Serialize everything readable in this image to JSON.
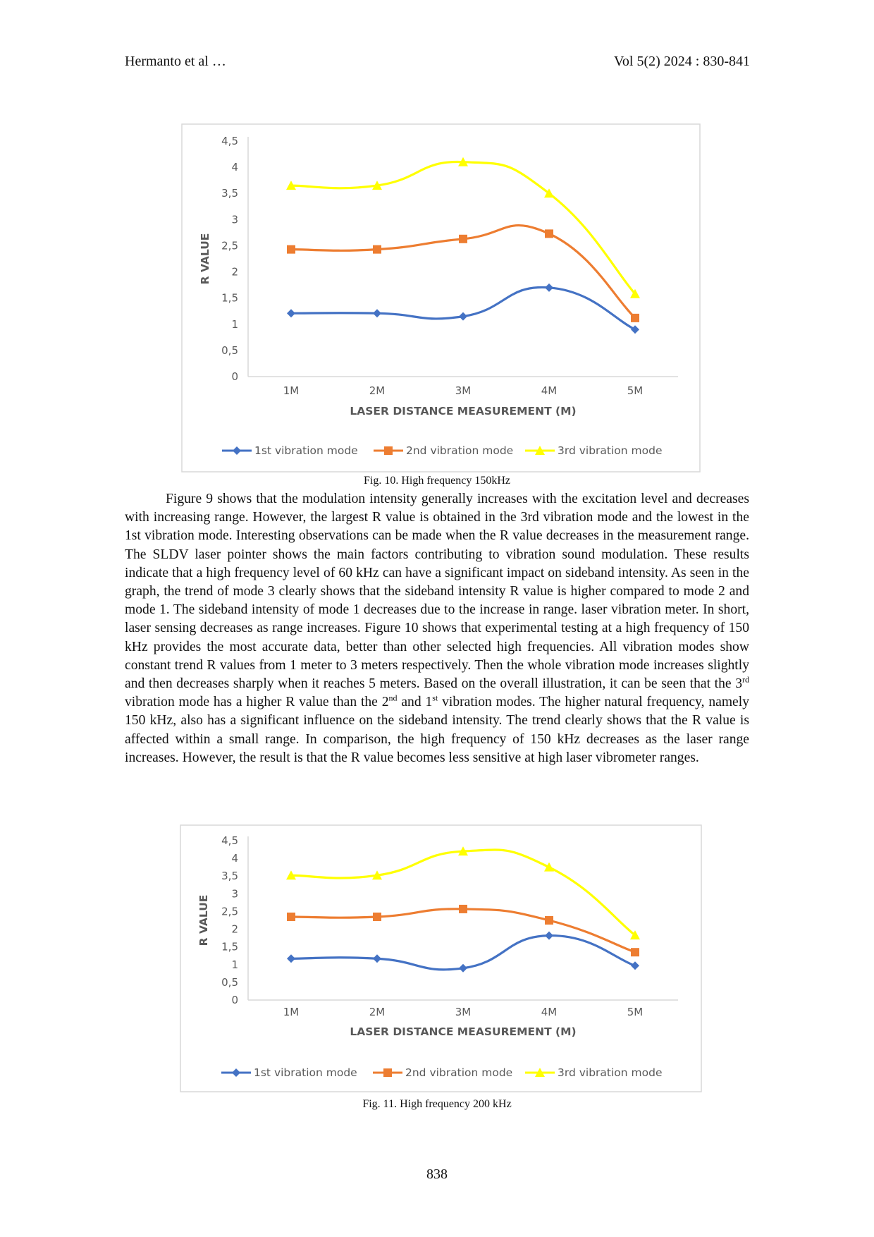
{
  "header": {
    "left": "Hermanto et al …",
    "right": "Vol 5(2) 2024 : 830-841"
  },
  "chart_data": [
    {
      "type": "line",
      "title": "",
      "xlabel": "LASER DISTANCE MEASUREMENT (M)",
      "ylabel": "R VALUE",
      "categories": [
        "1M",
        "2M",
        "3M",
        "4M",
        "5M"
      ],
      "ylim": [
        0,
        4.5
      ],
      "yticks": [
        "0",
        "0,5",
        "1",
        "1,5",
        "2",
        "2,5",
        "3",
        "3,5",
        "4",
        "4,5"
      ],
      "legend_position": "bottom",
      "series": [
        {
          "name": "1st vibration mode",
          "color": "#4472C4",
          "marker": "diamond",
          "values": [
            1.21,
            1.21,
            1.15,
            1.7,
            0.9
          ]
        },
        {
          "name": "2nd vibration mode",
          "color": "#ED7D31",
          "marker": "square",
          "values": [
            2.43,
            2.43,
            2.63,
            2.73,
            1.12
          ]
        },
        {
          "name": "3rd vibration mode",
          "color": "#FFFF00",
          "marker": "triangle",
          "values": [
            3.65,
            3.65,
            4.1,
            3.5,
            1.58
          ]
        }
      ]
    },
    {
      "type": "line",
      "title": "",
      "xlabel": "LASER DISTANCE MEASUREMENT (M)",
      "ylabel": "R VALUE",
      "categories": [
        "1M",
        "2M",
        "3M",
        "4M",
        "5M"
      ],
      "ylim": [
        0,
        4.5
      ],
      "yticks": [
        "0",
        "0,5",
        "1",
        "1,5",
        "2",
        "2,5",
        "3",
        "3,5",
        "4",
        "4,5"
      ],
      "legend_position": "bottom",
      "series": [
        {
          "name": "1st vibration mode",
          "color": "#4472C4",
          "marker": "diamond",
          "values": [
            1.17,
            1.17,
            0.9,
            1.82,
            0.97
          ]
        },
        {
          "name": "2nd vibration mode",
          "color": "#ED7D31",
          "marker": "square",
          "values": [
            2.35,
            2.35,
            2.57,
            2.25,
            1.35
          ]
        },
        {
          "name": "3rd vibration mode",
          "color": "#FFFF00",
          "marker": "triangle",
          "values": [
            3.52,
            3.52,
            4.2,
            3.75,
            1.83
          ]
        }
      ]
    }
  ],
  "figures": [
    {
      "caption": "Fig. 10. High frequency 150kHz"
    },
    {
      "caption": "Fig. 11. High frequency 200 kHz"
    }
  ],
  "paragraph": {
    "p1": "Figure 9 shows that the modulation intensity generally increases with the excitation level and decreases with increasing range. However, the largest R value is obtained in the 3rd vibration mode and the lowest in the 1st vibration mode. Interesting observations can be made when the R value decreases in the measurement range. The SLDV laser pointer shows the main factors contributing to vibration sound modulation. These results indicate that a high frequency level of 60 kHz can have a significant impact on sideband intensity. As seen in the graph, the trend of mode 3 clearly shows that the sideband intensity R value is higher compared to mode 2 and mode 1. The sideband intensity of mode 1 decreases due to the increase in range. laser vibration meter. In short, laser sensing decreases as range increases. Figure 10 shows that experimental testing at a high frequency of 150 kHz provides the most accurate data, better than other selected high frequencies. All vibration modes show constant trend R values from 1 meter to 3 meters respectively. Then the whole vibration mode increases slightly and then decreases sharply when it reaches 5 meters. Based on the overall illustration, it can be seen that the 3",
    "sup1": "rd",
    "p2": " vibration mode has a higher R value than the 2",
    "sup2": "nd",
    "p3": " and 1",
    "sup3": "st",
    "p4": " vibration modes. The higher natural frequency, namely 150 kHz, also has a significant influence on the sideband intensity. The trend clearly shows that the R value is affected within a small range. In comparison, the high frequency of 150 kHz decreases as the laser range increases. However, the result is that the R value becomes less sensitive at high laser vibrometer ranges."
  },
  "page_number": "838"
}
